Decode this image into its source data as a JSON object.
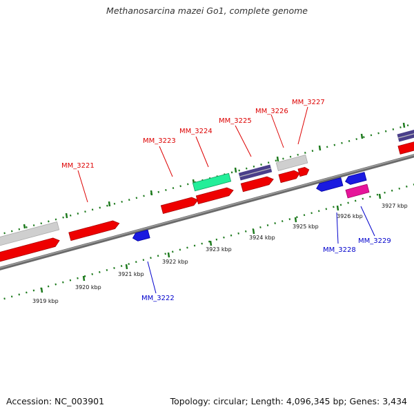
{
  "title": "Methanosarcina mazei Go1, complete genome",
  "footer": {
    "accession": "Accession: NC_003901",
    "summary": "Topology: circular; Length: 4,096,345 bp; Genes: 3,434"
  },
  "colors": {
    "red": "#ee0000",
    "gray": "#c8c8c8",
    "teal": "#22ee99",
    "navy": "#4a3f8a",
    "blue": "#1a1ae0",
    "magenta": "#e6159a",
    "tick_green": "#1d7a1d",
    "label_red": "#dd0000",
    "label_blue": "#0000cc"
  },
  "kbp_labels": [
    "3919 kbp",
    "3920 kbp",
    "3921 kbp",
    "3922 kbp",
    "3923 kbp",
    "3924 kbp",
    "3925 kbp",
    "3926 kbp",
    "3927 kbp"
  ],
  "gene_labels": [
    "MM_3221",
    "MM_3222",
    "MM_3223",
    "MM_3224",
    "MM_3225",
    "MM_3226",
    "MM_3227",
    "MM_3228",
    "MM_3229"
  ]
}
